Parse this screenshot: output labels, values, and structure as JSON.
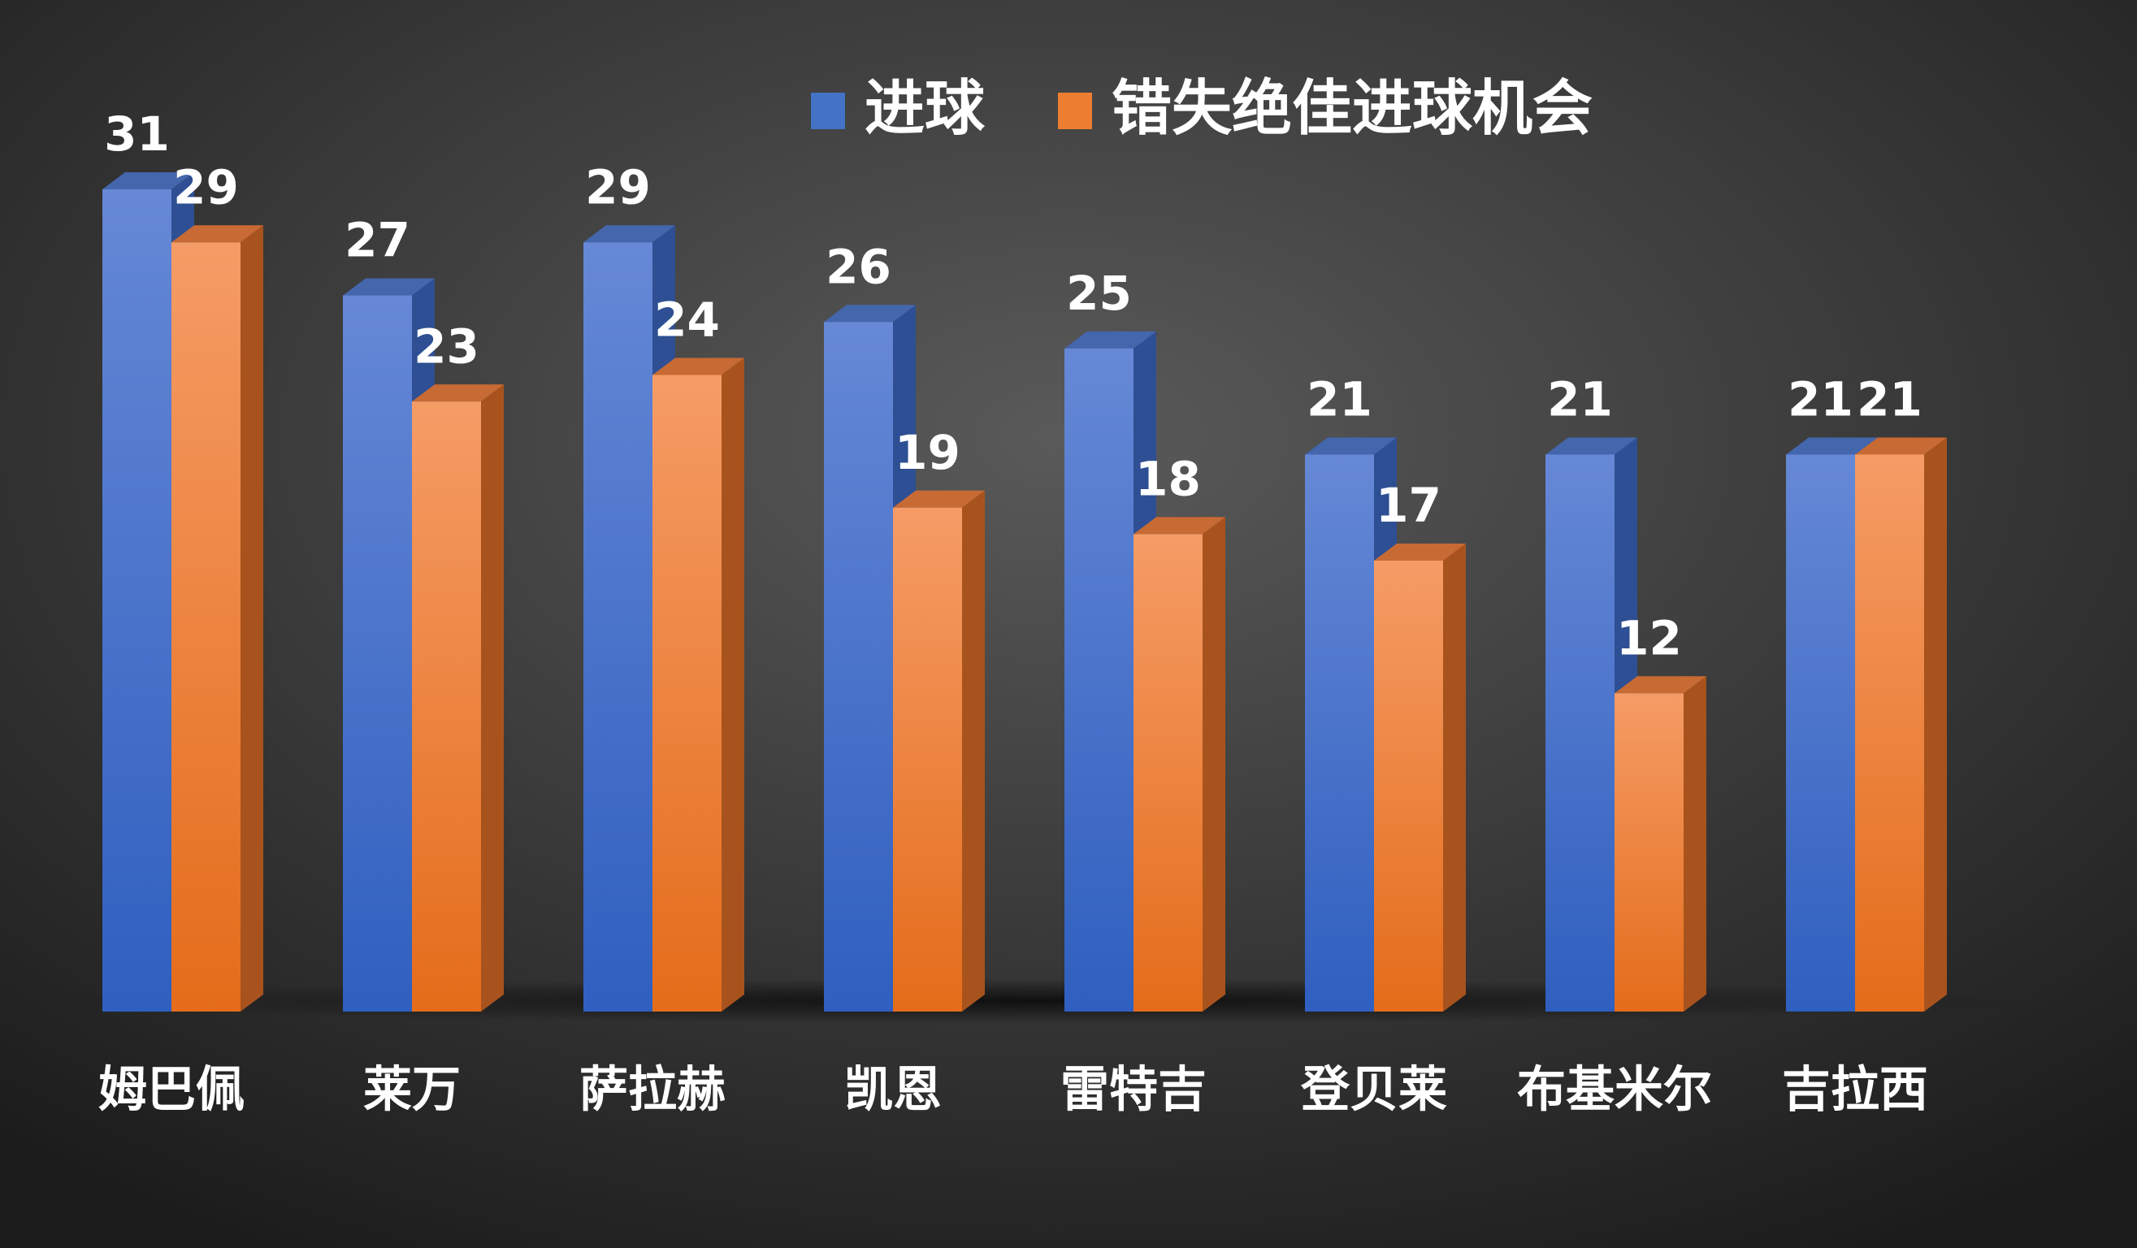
{
  "chart_data": {
    "type": "bar",
    "categories": [
      "姆巴佩",
      "莱万",
      "萨拉赫",
      "凯恩",
      "雷特吉",
      "登贝莱",
      "布基米尔",
      "吉拉西"
    ],
    "series": [
      {
        "name": "进球",
        "color": "#4472c4",
        "values": [
          31,
          27,
          29,
          26,
          25,
          21,
          21,
          21
        ]
      },
      {
        "name": "错失绝佳进球机会",
        "color": "#ed7d31",
        "values": [
          29,
          23,
          24,
          19,
          18,
          17,
          12,
          21
        ]
      }
    ],
    "legend": "top"
  }
}
